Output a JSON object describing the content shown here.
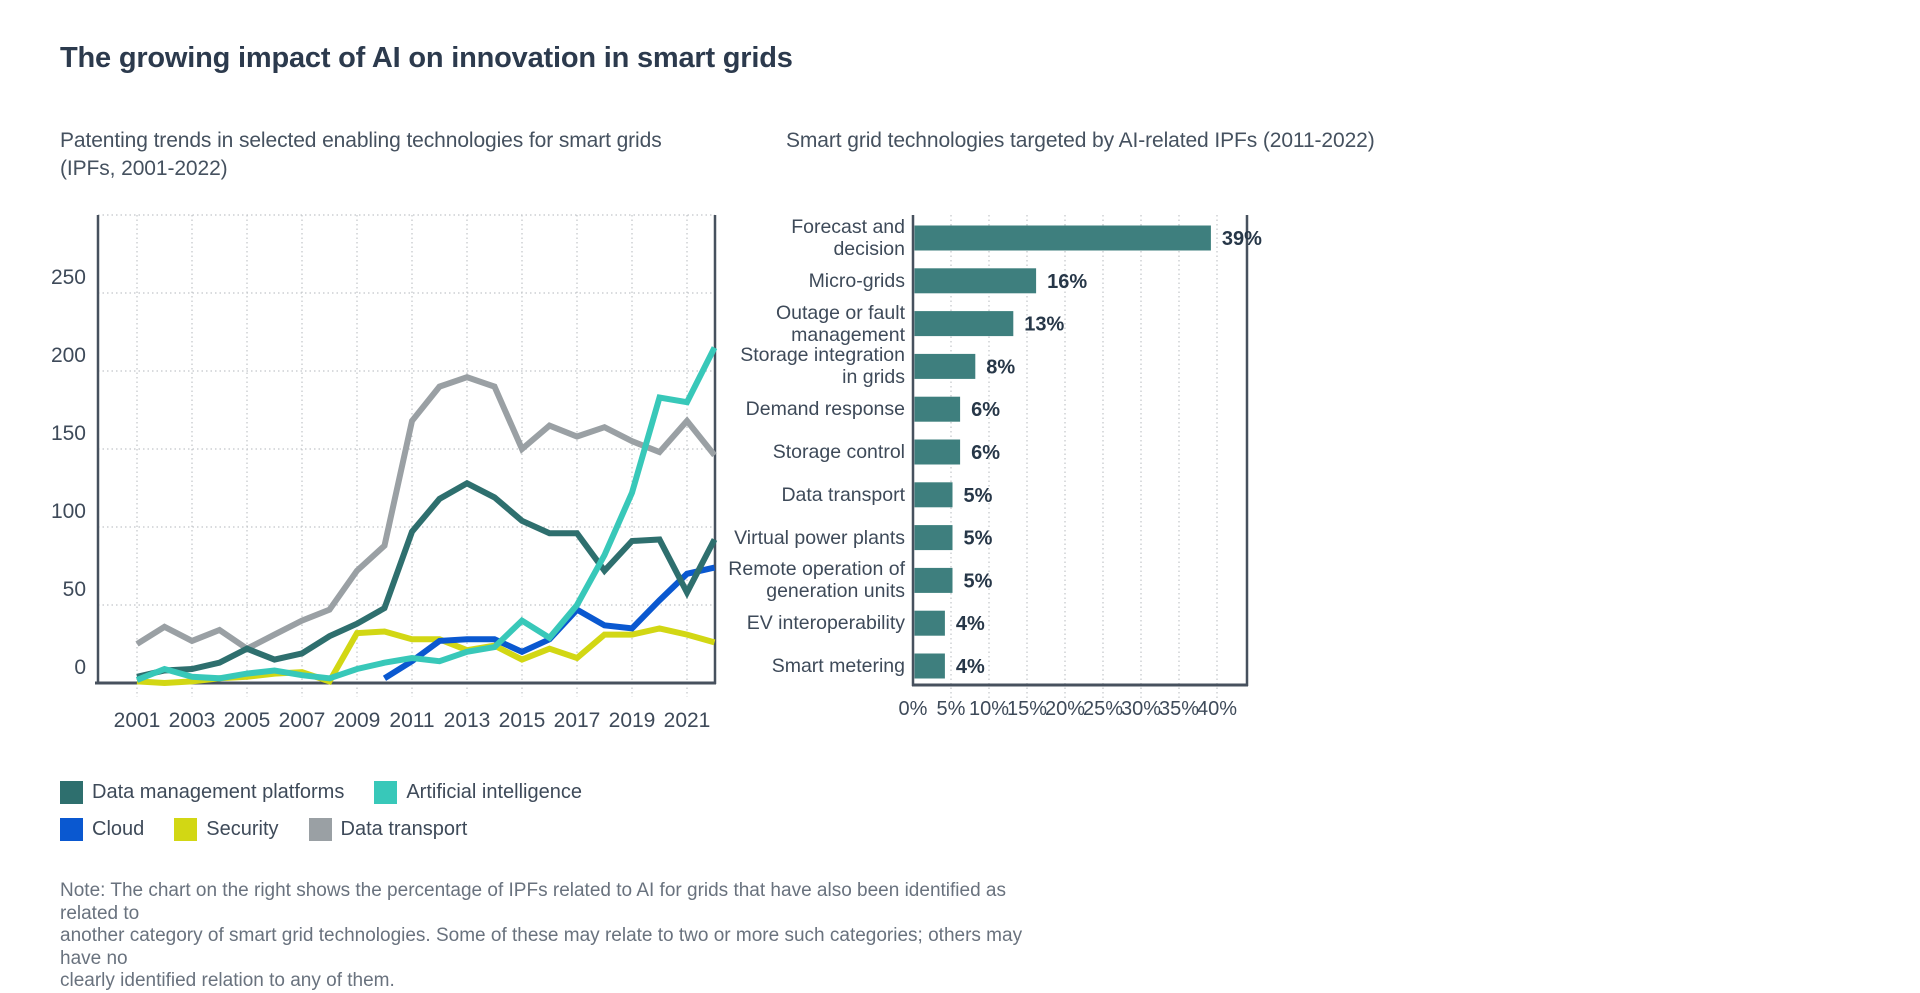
{
  "page": {
    "title": "The growing impact of AI on innovation in smart grids"
  },
  "left_chart": {
    "subtitle_lines": [
      "Patenting trends in selected enabling technologies for smart grids",
      "(IPFs, 2001-2022)"
    ]
  },
  "right_chart": {
    "subtitle": "Smart grid technologies targeted by AI-related IPFs (2011-2022)"
  },
  "legend": {
    "rows": [
      [
        {
          "label": "Data management platforms",
          "color": "#2e6f6e"
        },
        {
          "label": "Artificial intelligence",
          "color": "#38c8b9"
        }
      ],
      [
        {
          "label": "Cloud",
          "color": "#0a58d0"
        },
        {
          "label": "Security",
          "color": "#d2d714"
        },
        {
          "label": "Data transport",
          "color": "#9aa0a4"
        }
      ]
    ]
  },
  "note": {
    "lines": [
      "Note: The chart on the right shows the percentage of IPFs related to AI for grids that have also been identified as related to",
      "another category of smart grid technologies. Some of these may relate to two or more such categories; others may have no",
      "clearly identified relation to any of them."
    ]
  },
  "colors": {
    "axis": "#47515e",
    "grid": "#c2c5c9",
    "tick_label": "#3e4a59",
    "value_label": "#273748",
    "bar_fill": "#3e7f7e"
  },
  "chart_data": [
    {
      "type": "line",
      "title": "Patenting trends in selected enabling technologies for smart grids (IPFs, 2001-2022)",
      "x": [
        2001,
        2002,
        2003,
        2004,
        2005,
        2006,
        2007,
        2008,
        2009,
        2010,
        2011,
        2012,
        2013,
        2014,
        2015,
        2016,
        2017,
        2018,
        2019,
        2020,
        2021,
        2022
      ],
      "xticks": [
        2001,
        2003,
        2005,
        2007,
        2009,
        2011,
        2013,
        2015,
        2017,
        2019,
        2021
      ],
      "yticks": [
        0,
        50,
        100,
        150,
        200,
        250
      ],
      "ylim": [
        0,
        300
      ],
      "grid": "dotted",
      "series": [
        {
          "name": "Data management platforms",
          "color": "#2e6f6e",
          "start_year": 2001,
          "values": [
            4,
            8,
            9,
            13,
            22,
            15,
            19,
            30,
            38,
            48,
            97,
            118,
            128,
            119,
            104,
            96,
            96,
            72,
            91,
            92,
            58,
            92
          ]
        },
        {
          "name": "Artificial intelligence",
          "color": "#38c8b9",
          "start_year": 2001,
          "values": [
            2,
            9,
            4,
            3,
            6,
            8,
            5,
            3,
            9,
            13,
            16,
            14,
            20,
            23,
            40,
            29,
            50,
            82,
            122,
            183,
            180,
            215
          ]
        },
        {
          "name": "Cloud",
          "color": "#0a58d0",
          "start_year": 2010,
          "values": [
            3,
            14,
            27,
            28,
            28,
            20,
            28,
            47,
            37,
            35,
            53,
            70,
            74
          ]
        },
        {
          "name": "Security",
          "color": "#d2d714",
          "start_year": 2001,
          "values": [
            1,
            0,
            1,
            3,
            4,
            6,
            7,
            1,
            32,
            33,
            28,
            28,
            21,
            24,
            15,
            22,
            16,
            31,
            31,
            35,
            31,
            26
          ]
        },
        {
          "name": "Data transport",
          "color": "#9aa0a4",
          "start_year": 2001,
          "values": [
            25,
            36,
            27,
            34,
            22,
            31,
            40,
            47,
            72,
            88,
            168,
            190,
            196,
            190,
            150,
            165,
            158,
            164,
            155,
            148,
            168,
            146
          ]
        }
      ]
    },
    {
      "type": "bar",
      "orientation": "horizontal",
      "title": "Smart grid technologies targeted by AI-related IPFs (2011-2022)",
      "unit": "%",
      "xlim": [
        0,
        44
      ],
      "xticks": [
        0,
        5,
        10,
        15,
        20,
        25,
        30,
        35,
        40
      ],
      "xtick_labels": [
        "0%",
        "5%",
        "10%",
        "15%",
        "20%",
        "25%",
        "30%",
        "35%",
        "40%"
      ],
      "categories": [
        {
          "lines": [
            "Forecast and",
            "decision"
          ],
          "label": "Forecast and decision",
          "value": 39,
          "value_label": "39%"
        },
        {
          "lines": [
            "Micro-grids"
          ],
          "label": "Micro-grids",
          "value": 16,
          "value_label": "16%"
        },
        {
          "lines": [
            "Outage or fault",
            "management"
          ],
          "label": "Outage or fault management",
          "value": 13,
          "value_label": "13%"
        },
        {
          "lines": [
            "Storage integration",
            "in grids"
          ],
          "label": "Storage integration in grids",
          "value": 8,
          "value_label": "8%"
        },
        {
          "lines": [
            "Demand response"
          ],
          "label": "Demand response",
          "value": 6,
          "value_label": "6%"
        },
        {
          "lines": [
            "Storage control"
          ],
          "label": "Storage control",
          "value": 6,
          "value_label": "6%"
        },
        {
          "lines": [
            "Data transport"
          ],
          "label": "Data transport",
          "value": 5,
          "value_label": "5%"
        },
        {
          "lines": [
            "Virtual power plants"
          ],
          "label": "Virtual power plants",
          "value": 5,
          "value_label": "5%"
        },
        {
          "lines": [
            "Remote operation of",
            "generation units"
          ],
          "label": "Remote operation of generation units",
          "value": 5,
          "value_label": "5%"
        },
        {
          "lines": [
            "EV interoperability"
          ],
          "label": "EV interoperability",
          "value": 4,
          "value_label": "4%"
        },
        {
          "lines": [
            "Smart metering"
          ],
          "label": "Smart metering",
          "value": 4,
          "value_label": "4%"
        }
      ]
    }
  ]
}
